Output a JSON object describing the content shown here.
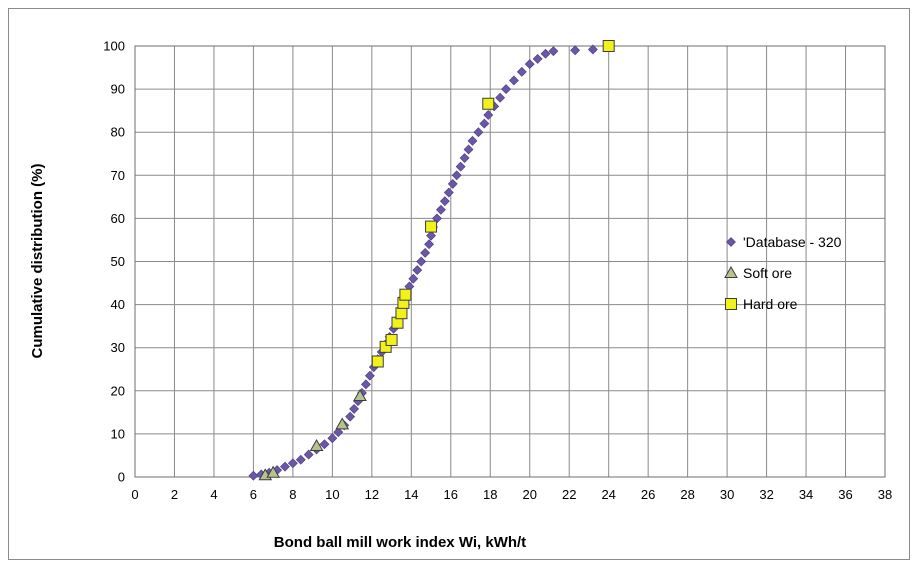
{
  "chart_data": {
    "type": "scatter",
    "xlabel": "Bond ball mill work index Wi, kWh/t",
    "ylabel": "Cumulative distribution (%)",
    "xlim": [
      0,
      38
    ],
    "ylim": [
      0,
      100
    ],
    "xticks": [
      0,
      2,
      4,
      6,
      8,
      10,
      12,
      14,
      16,
      18,
      20,
      22,
      24,
      26,
      28,
      30,
      32,
      34,
      36,
      38
    ],
    "yticks": [
      0,
      10,
      20,
      30,
      40,
      50,
      60,
      70,
      80,
      90,
      100
    ],
    "grid": true,
    "legend_position": "right",
    "series": [
      {
        "name": "'Database - 320",
        "marker": "diamond",
        "color": "#6b56a8",
        "points": [
          [
            6.0,
            0.3
          ],
          [
            6.4,
            0.6
          ],
          [
            6.8,
            1.0
          ],
          [
            7.2,
            1.6
          ],
          [
            7.6,
            2.4
          ],
          [
            8.0,
            3.2
          ],
          [
            8.4,
            4.0
          ],
          [
            8.8,
            5.2
          ],
          [
            9.2,
            6.4
          ],
          [
            9.6,
            7.6
          ],
          [
            10.0,
            9.0
          ],
          [
            10.3,
            10.4
          ],
          [
            10.6,
            12.0
          ],
          [
            10.9,
            14.0
          ],
          [
            11.1,
            15.8
          ],
          [
            11.3,
            17.6
          ],
          [
            11.5,
            19.5
          ],
          [
            11.7,
            21.5
          ],
          [
            11.9,
            23.5
          ],
          [
            12.1,
            25.5
          ],
          [
            12.3,
            27.3
          ],
          [
            12.5,
            29.0
          ],
          [
            12.7,
            30.8
          ],
          [
            12.9,
            32.5
          ],
          [
            13.1,
            34.4
          ],
          [
            13.3,
            36.3
          ],
          [
            13.5,
            38.3
          ],
          [
            13.6,
            40.3
          ],
          [
            13.7,
            42.2
          ],
          [
            13.9,
            44.2
          ],
          [
            14.1,
            46.0
          ],
          [
            14.3,
            48.0
          ],
          [
            14.5,
            50.0
          ],
          [
            14.7,
            52.0
          ],
          [
            14.9,
            54.0
          ],
          [
            15.0,
            56.0
          ],
          [
            15.1,
            58.0
          ],
          [
            15.3,
            60.0
          ],
          [
            15.5,
            62.0
          ],
          [
            15.7,
            64.0
          ],
          [
            15.9,
            66.0
          ],
          [
            16.1,
            68.0
          ],
          [
            16.3,
            70.0
          ],
          [
            16.5,
            72.0
          ],
          [
            16.7,
            74.0
          ],
          [
            16.9,
            76.0
          ],
          [
            17.1,
            78.0
          ],
          [
            17.4,
            80.0
          ],
          [
            17.7,
            82.0
          ],
          [
            17.9,
            84.0
          ],
          [
            18.2,
            86.0
          ],
          [
            18.5,
            88.0
          ],
          [
            18.8,
            90.0
          ],
          [
            19.2,
            92.0
          ],
          [
            19.6,
            94.0
          ],
          [
            20.0,
            95.8
          ],
          [
            20.4,
            97.0
          ],
          [
            20.8,
            98.2
          ],
          [
            21.2,
            98.8
          ],
          [
            22.3,
            99.0
          ],
          [
            23.2,
            99.2
          ]
        ]
      },
      {
        "name": "Soft ore",
        "marker": "triangle",
        "color": "#b5c48a",
        "points": [
          [
            6.6,
            0.4
          ],
          [
            7.0,
            1.0
          ],
          [
            9.2,
            7.2
          ],
          [
            10.5,
            12.2
          ],
          [
            11.4,
            18.8
          ]
        ]
      },
      {
        "name": "Hard ore",
        "marker": "square",
        "color": "#f2f21a",
        "points": [
          [
            12.3,
            26.8
          ],
          [
            12.7,
            30.2
          ],
          [
            13.0,
            31.8
          ],
          [
            13.3,
            35.8
          ],
          [
            13.5,
            38.0
          ],
          [
            13.6,
            40.4
          ],
          [
            13.7,
            42.3
          ],
          [
            15.0,
            58.1
          ],
          [
            17.9,
            86.6
          ],
          [
            24.0,
            100.0
          ]
        ]
      }
    ]
  }
}
